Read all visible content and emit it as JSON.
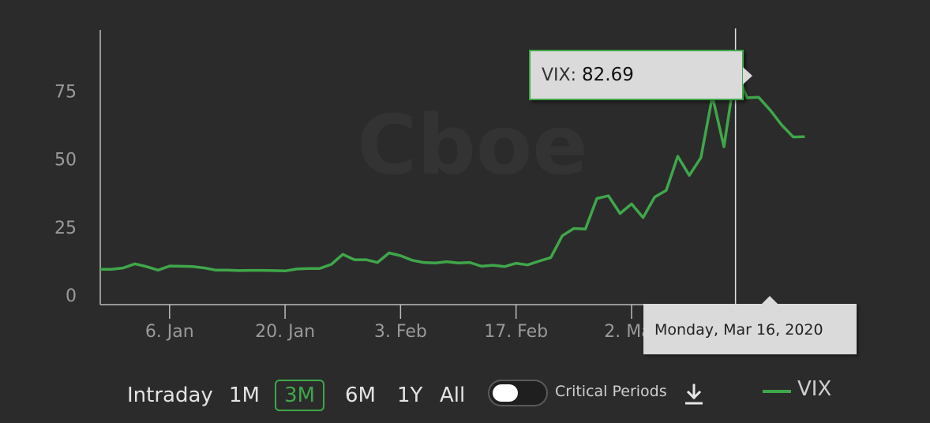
{
  "chart_data": {
    "type": "line",
    "watermark": "Cboe",
    "series": [
      {
        "name": "VIX",
        "color": "#3fa74a",
        "values": [
          9.5,
          9.5,
          10,
          11.5,
          10.5,
          9.2,
          10.7,
          10.6,
          10.5,
          10,
          9.2,
          9.2,
          9,
          9.1,
          9.1,
          9,
          8.9,
          9.6,
          9.8,
          9.8,
          11.3,
          15,
          13,
          13,
          12,
          15.5,
          14.5,
          12.8,
          12,
          11.8,
          12.3,
          11.8,
          12,
          10.6,
          11,
          10.5,
          11.7,
          11.1,
          12.5,
          13.8,
          21.8,
          24.5,
          24.3,
          35.5,
          36.5,
          30,
          33.5,
          28.5,
          36,
          38.5,
          51,
          44,
          50.5,
          73,
          54.5,
          82.69,
          72.5,
          72.7,
          68,
          62.5,
          58.1,
          58.2
        ]
      }
    ],
    "y_ticks": [
      "0",
      "25",
      "50",
      "75"
    ],
    "ylim": [
      0,
      88
    ],
    "x_ticks": [
      {
        "label": "6. Jan",
        "index": 6
      },
      {
        "label": "20. Jan",
        "index": 16
      },
      {
        "label": "3. Feb",
        "index": 26
      },
      {
        "label": "17. Feb",
        "index": 36
      },
      {
        "label": "2. Mar",
        "index": 46
      }
    ],
    "grid": false,
    "legend": "bottom-right",
    "highlight": {
      "index": 55
    }
  },
  "tooltip": {
    "series": "VIX:",
    "value": "82.69",
    "date": "Monday, Mar 16, 2020"
  },
  "controls": {
    "ranges": [
      "Intraday",
      "1M",
      "3M",
      "6M",
      "1Y",
      "All"
    ],
    "active": "3M",
    "critical_label": "Critical Periods"
  },
  "legend": {
    "label": "VIX"
  },
  "icons": {
    "download": "download-icon"
  }
}
